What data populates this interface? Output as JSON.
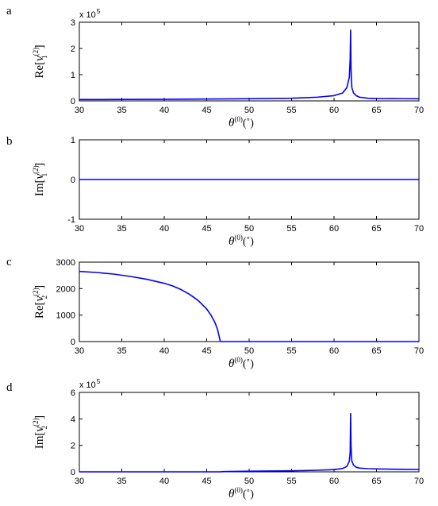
{
  "chart_data": [
    {
      "type": "line",
      "panel": "a",
      "ylabel": {
        "pre": "Re[",
        "v": "v",
        "sup": "(2)",
        "sub": "1",
        "post": "]"
      },
      "xlabel": {
        "theta": "θ",
        "sup": "(0)",
        "unit": "(˚)"
      },
      "multiplier": {
        "base": "x 10",
        "exp": "5"
      },
      "xlim": [
        30,
        70
      ],
      "ylim": [
        0,
        3
      ],
      "xticks": [
        "30",
        "35",
        "40",
        "45",
        "50",
        "55",
        "60",
        "65",
        "70"
      ],
      "yticks": [
        "0",
        "1",
        "2",
        "3"
      ],
      "series": [
        {
          "color": "#0000ff",
          "x": [
            30,
            35,
            40,
            45,
            50,
            55,
            58,
            60,
            61,
            61.5,
            61.8,
            61.9,
            61.95,
            62.0,
            62.05,
            62.1,
            62.3,
            62.6,
            63,
            64,
            65,
            67,
            70
          ],
          "y": [
            0.05,
            0.055,
            0.06,
            0.07,
            0.08,
            0.1,
            0.14,
            0.2,
            0.3,
            0.5,
            0.9,
            1.6,
            2.7,
            1.2,
            0.8,
            0.5,
            0.3,
            0.2,
            0.14,
            0.1,
            0.09,
            0.085,
            0.08
          ]
        }
      ]
    },
    {
      "type": "line",
      "panel": "b",
      "ylabel": {
        "pre": "Im[",
        "v": "v",
        "sup": "(2)",
        "sub": "1",
        "post": "]"
      },
      "xlabel": {
        "theta": "θ",
        "sup": "(0)",
        "unit": "(˚)"
      },
      "xlim": [
        30,
        70
      ],
      "ylim": [
        -1,
        1
      ],
      "xticks": [
        "30",
        "35",
        "40",
        "45",
        "50",
        "55",
        "60",
        "65",
        "70"
      ],
      "yticks": [
        "-1",
        "0",
        "1"
      ],
      "series": [
        {
          "color": "#0000ff",
          "x": [
            30,
            70
          ],
          "y": [
            0,
            0
          ]
        }
      ]
    },
    {
      "type": "line",
      "panel": "c",
      "ylabel": {
        "pre": "Re[",
        "v": "v",
        "sup": "(2)",
        "sub": "2",
        "post": "]"
      },
      "xlabel": {
        "theta": "θ",
        "sup": "(0)",
        "unit": "(˚)"
      },
      "xlim": [
        30,
        70
      ],
      "ylim": [
        0,
        3000
      ],
      "xticks": [
        "30",
        "35",
        "40",
        "45",
        "50",
        "55",
        "60",
        "65",
        "70"
      ],
      "yticks": [
        "0",
        "1000",
        "2000",
        "3000"
      ],
      "series": [
        {
          "color": "#0000ff",
          "x": [
            30,
            32,
            34,
            36,
            38,
            40,
            41,
            42,
            43,
            44,
            45,
            45.5,
            46,
            46.3,
            46.5,
            46.6,
            47,
            50,
            55,
            60,
            65,
            70
          ],
          "y": [
            2650,
            2610,
            2550,
            2460,
            2350,
            2200,
            2100,
            1960,
            1780,
            1550,
            1230,
            1000,
            700,
            430,
            150,
            0,
            0,
            0,
            0,
            0,
            0,
            0
          ]
        }
      ]
    },
    {
      "type": "line",
      "panel": "d",
      "ylabel": {
        "pre": "Im[",
        "v": "v",
        "sup": "(2)",
        "sub": "2",
        "post": "]"
      },
      "xlabel": {
        "theta": "θ",
        "sup": "(0)",
        "unit": "(˚)"
      },
      "multiplier": {
        "base": "x 10",
        "exp": "5"
      },
      "xlim": [
        30,
        70
      ],
      "ylim": [
        0,
        6
      ],
      "xticks": [
        "30",
        "35",
        "40",
        "45",
        "50",
        "55",
        "60",
        "65",
        "70"
      ],
      "yticks": [
        "0",
        "2",
        "4",
        "6"
      ],
      "series": [
        {
          "color": "#0000ff",
          "x": [
            30,
            40,
            46.5,
            47,
            50,
            55,
            58,
            60,
            61,
            61.5,
            61.8,
            61.9,
            61.95,
            62.0,
            62.05,
            62.1,
            62.3,
            62.6,
            63,
            64,
            65,
            67,
            70
          ],
          "y": [
            0,
            0,
            0,
            0.02,
            0.05,
            0.08,
            0.12,
            0.17,
            0.25,
            0.4,
            0.8,
            1.5,
            4.4,
            2.0,
            1.2,
            0.8,
            0.5,
            0.35,
            0.28,
            0.24,
            0.22,
            0.2,
            0.18
          ]
        }
      ]
    }
  ]
}
